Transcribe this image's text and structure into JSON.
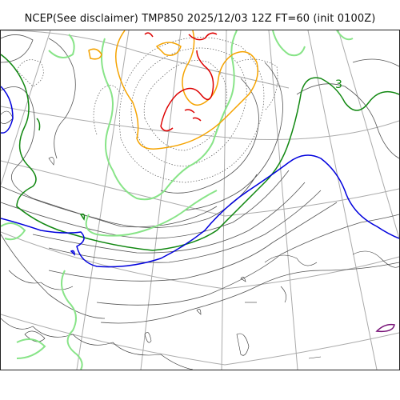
{
  "map": {
    "title": "NCEP(See disclaimer) TMP850 2025/12/03 12Z FT=60 (init 0100Z)",
    "contour_label": "3"
  },
  "colors": {
    "graticule": "#aaaaaa",
    "coastline": "#333333",
    "thin_isotherm": "#555555",
    "green_isotherm": "#118811",
    "lightgreen_isotherm": "#88e488",
    "blue_isotherm": "#0000dd",
    "orange_isotherm": "#f5a300",
    "red_isotherm": "#dd0000",
    "purple_isotherm": "#771177"
  }
}
